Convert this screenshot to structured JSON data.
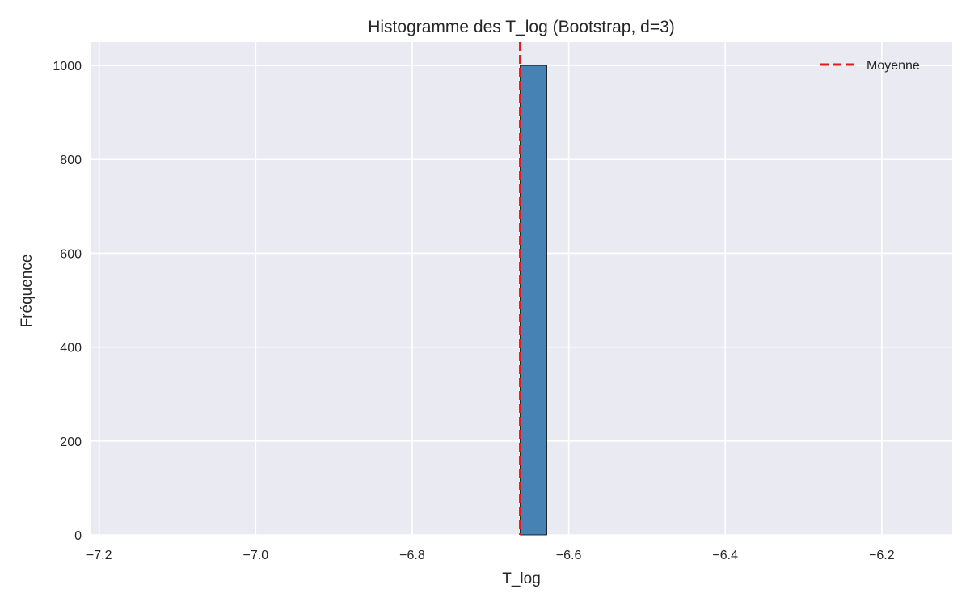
{
  "chart_data": {
    "type": "bar",
    "title": "Histogramme des T_log (Bootstrap, d=3)",
    "xlabel": "T_log",
    "ylabel": "Fréquence",
    "xlim": [
      -7.21,
      -6.11
    ],
    "ylim": [
      0,
      1050
    ],
    "xticks": [
      -7.2,
      -7.0,
      -6.8,
      -6.6,
      -6.4,
      -6.2
    ],
    "xtick_labels": [
      "−7.2",
      "−7.0",
      "−6.8",
      "−6.6",
      "−6.4",
      "−6.2"
    ],
    "yticks": [
      0,
      200,
      400,
      600,
      800,
      1000
    ],
    "ytick_labels": [
      "0",
      "200",
      "400",
      "600",
      "800",
      "1000"
    ],
    "grid": true,
    "bins": [
      {
        "x0": -6.662,
        "x1": -6.628,
        "count": 1000
      }
    ],
    "mean_line": {
      "x": -6.662,
      "label": "Moyenne",
      "color": "#e41a1c",
      "style": "dashed"
    },
    "legend": {
      "placement": "top-right",
      "entries": [
        "Moyenne"
      ]
    },
    "colors": {
      "bar": "#4682b4",
      "bar_edge": "#000000",
      "background": "#eaeaf2",
      "grid": "#ffffff",
      "mean": "#e41a1c"
    }
  }
}
